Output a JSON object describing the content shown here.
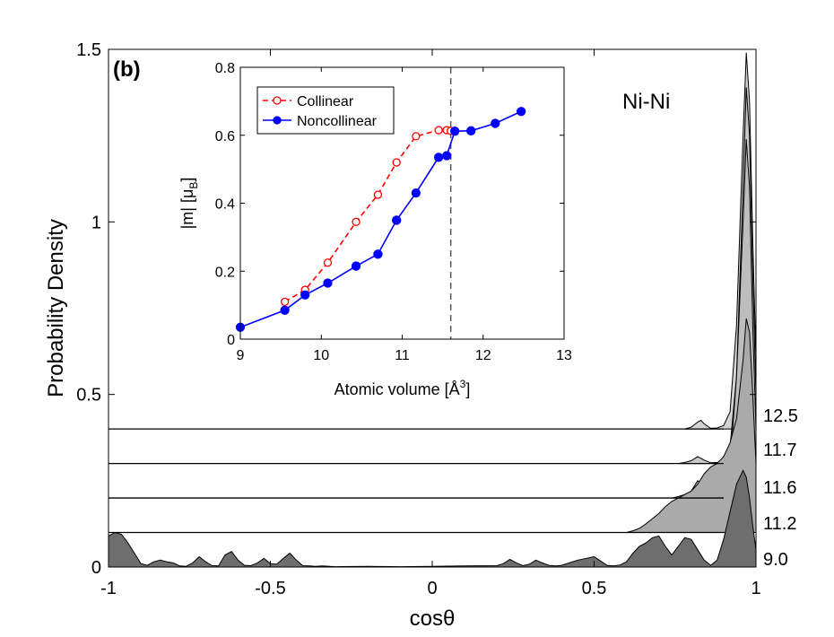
{
  "chart_data": [
    {
      "type": "area",
      "title": "",
      "panel_label": "(b)",
      "annotation": "Ni-Ni",
      "xlabel": "cosθ",
      "ylabel": "Probability Density",
      "xlim": [
        -1,
        1
      ],
      "ylim": [
        0,
        1.5
      ],
      "xticks": [
        -1,
        -0.5,
        0,
        0.5,
        1
      ],
      "xtick_labels": [
        "-1",
        "-0.5",
        "0",
        "0.5",
        "1"
      ],
      "yticks": [
        0,
        0.5,
        1,
        1.5
      ],
      "ytick_labels": [
        "0",
        "0.5",
        "1",
        "1.5"
      ],
      "series": [
        {
          "name": "9.0",
          "label": "9.0",
          "offset": 0,
          "color": "#6e6e6e",
          "x": [
            -1,
            -0.98,
            -0.96,
            -0.94,
            -0.92,
            -0.9,
            -0.88,
            -0.86,
            -0.84,
            -0.82,
            -0.8,
            -0.78,
            -0.76,
            -0.74,
            -0.72,
            -0.7,
            -0.68,
            -0.66,
            -0.64,
            -0.62,
            -0.6,
            -0.58,
            -0.56,
            -0.54,
            -0.52,
            -0.5,
            -0.48,
            -0.46,
            -0.44,
            -0.42,
            -0.4,
            -0.38,
            -0.36,
            -0.34,
            -0.3,
            -0.2,
            -0.1,
            0,
            0.1,
            0.2,
            0.22,
            0.24,
            0.26,
            0.28,
            0.3,
            0.32,
            0.34,
            0.36,
            0.38,
            0.4,
            0.45,
            0.5,
            0.54,
            0.56,
            0.58,
            0.6,
            0.62,
            0.64,
            0.66,
            0.68,
            0.7,
            0.72,
            0.74,
            0.76,
            0.78,
            0.8,
            0.82,
            0.84,
            0.86,
            0.88,
            0.9,
            0.92,
            0.94,
            0.96,
            0.97,
            0.98,
            0.99,
            1
          ],
          "y": [
            0.09,
            0.1,
            0.095,
            0.07,
            0.04,
            0.01,
            0.005,
            0.015,
            0.02,
            0.015,
            0.012,
            0.003,
            0.002,
            0.012,
            0.03,
            0.015,
            0.004,
            0.003,
            0.035,
            0.045,
            0.02,
            0.005,
            0.004,
            0.012,
            0.025,
            0.01,
            0.008,
            0.025,
            0.04,
            0.02,
            0.004,
            0.003,
            0.002,
            0.003,
            0.001,
            0.002,
            0.001,
            0.002,
            0.003,
            0.004,
            0.01,
            0.022,
            0.012,
            0.004,
            0.008,
            0.02,
            0.012,
            0.005,
            0.003,
            0.005,
            0.02,
            0.03,
            0.005,
            0.003,
            0.006,
            0.015,
            0.04,
            0.06,
            0.07,
            0.085,
            0.09,
            0.06,
            0.035,
            0.06,
            0.085,
            0.08,
            0.05,
            0.02,
            0.005,
            0.02,
            0.08,
            0.16,
            0.24,
            0.28,
            0.26,
            0.2,
            0.12,
            0.05
          ]
        },
        {
          "name": "11.2",
          "label": "11.2",
          "offset": 0.1,
          "color": "#aaaaaa",
          "x": [
            0.6,
            0.62,
            0.64,
            0.66,
            0.68,
            0.7,
            0.72,
            0.74,
            0.76,
            0.78,
            0.8,
            0.82,
            0.84,
            0.86,
            0.88,
            0.9,
            0.92,
            0.94,
            0.96,
            0.97,
            0.98,
            0.99,
            1
          ],
          "y": [
            0,
            0.005,
            0.012,
            0.025,
            0.04,
            0.055,
            0.075,
            0.09,
            0.1,
            0.11,
            0.12,
            0.14,
            0.17,
            0.19,
            0.2,
            0.22,
            0.26,
            0.33,
            0.5,
            0.62,
            0.58,
            0.4,
            0.2
          ]
        },
        {
          "name": "11.6",
          "label": "11.6",
          "offset": 0.2,
          "color": "#bdbdbd",
          "x": [
            0.74,
            0.76,
            0.78,
            0.8,
            0.82,
            0.84,
            0.86,
            0.88,
            0.9,
            0.92,
            0.94,
            0.96,
            0.97,
            0.98,
            0.99,
            1
          ],
          "y": [
            0,
            0.004,
            0.01,
            0.02,
            0.05,
            0.035,
            0.02,
            0.005,
            0.02,
            0.1,
            0.35,
            0.8,
            1.04,
            0.9,
            0.5,
            0.2
          ]
        },
        {
          "name": "11.7",
          "label": "11.7",
          "offset": 0.3,
          "color": "#c8c8c8",
          "x": [
            0.76,
            0.78,
            0.8,
            0.82,
            0.84,
            0.86,
            0.88,
            0.9,
            0.92,
            0.94,
            0.96,
            0.97,
            0.98,
            0.99,
            1
          ],
          "y": [
            0,
            0.003,
            0.008,
            0.02,
            0.01,
            0.002,
            0.003,
            0.01,
            0.05,
            0.25,
            0.8,
            1.09,
            0.95,
            0.55,
            0.2
          ]
        },
        {
          "name": "12.5",
          "label": "12.5",
          "offset": 0.4,
          "color": "#d2d2d2",
          "x": [
            0.78,
            0.8,
            0.82,
            0.83,
            0.84,
            0.86,
            0.88,
            0.9,
            0.92,
            0.94,
            0.96,
            0.97,
            0.98,
            0.99,
            1
          ],
          "y": [
            0,
            0.005,
            0.02,
            0.025,
            0.015,
            0.002,
            0.003,
            0.01,
            0.05,
            0.3,
            0.85,
            1.09,
            0.95,
            0.55,
            0.2
          ]
        }
      ]
    },
    {
      "type": "line",
      "title": "",
      "xlabel": "Atomic volume [Å",
      "xlabel_superscript": "3",
      "xlabel_suffix": "]",
      "ylabel": "|m| [μ",
      "ylabel_subscript": "B",
      "ylabel_suffix": "]",
      "xlim": [
        9,
        13
      ],
      "ylim": [
        0,
        0.8
      ],
      "xticks": [
        9,
        10,
        11,
        12,
        13
      ],
      "xtick_labels": [
        "9",
        "10",
        "11",
        "12",
        "13"
      ],
      "yticks": [
        0,
        0.2,
        0.4,
        0.6,
        0.8
      ],
      "ytick_labels": [
        "0",
        "0.2",
        "0.4",
        "0.6",
        "0.8"
      ],
      "vline": 11.6,
      "legend_position": "top-left",
      "series": [
        {
          "name": "Collinear",
          "color": "#ff0000",
          "style": "dashed",
          "marker": "open-circle",
          "x": [
            9.55,
            9.8,
            10.08,
            10.43,
            10.7,
            10.93,
            11.17,
            11.45,
            11.55,
            11.6,
            11.65
          ],
          "y": [
            0.11,
            0.145,
            0.225,
            0.345,
            0.425,
            0.52,
            0.597,
            0.615,
            0.615,
            0.613,
            0.612
          ],
          "extra_x": [
            12.47
          ],
          "extra_y": [
            0.67
          ]
        },
        {
          "name": "Noncollinear",
          "color": "#0000ff",
          "style": "solid",
          "marker": "filled-circle",
          "x": [
            9,
            9.55,
            9.8,
            10.08,
            10.43,
            10.7,
            10.93,
            11.17,
            11.45,
            11.55,
            11.65,
            11.85,
            12.15,
            12.47
          ],
          "y": [
            0.035,
            0.085,
            0.13,
            0.165,
            0.215,
            0.25,
            0.35,
            0.43,
            0.535,
            0.54,
            0.612,
            0.613,
            0.635,
            0.67
          ]
        }
      ]
    }
  ]
}
